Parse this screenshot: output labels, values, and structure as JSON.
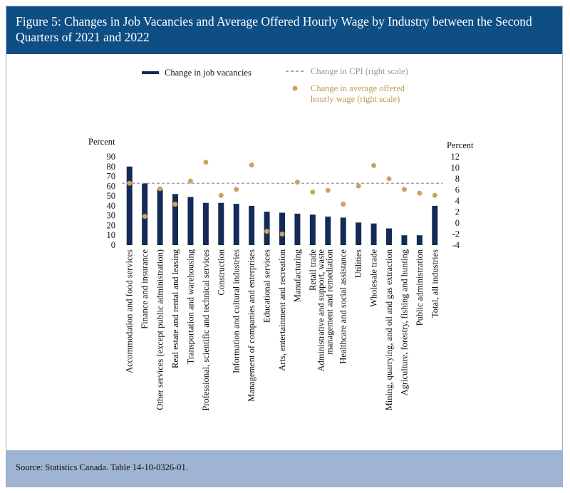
{
  "header": {
    "title": "Figure 5: Changes in Job Vacancies and Average Offered Hourly Wage by Industry between the Second Quarters of 2021 and 2022"
  },
  "footer": {
    "source": "Source: Statistics Canada. Table 14-10-0326-01."
  },
  "colors": {
    "header_bg": "#0f4e85",
    "footer_bg": "#9fb4d2",
    "bar": "#142b57",
    "wage_dot": "#c9a55c",
    "cpi_line": "#a6a6a6",
    "wage_legend_text": "#b89a52"
  },
  "chart_data": {
    "type": "bar",
    "left_axis_title": "Percent",
    "right_axis_title": "Percent",
    "ylim_left": [
      0,
      90
    ],
    "yticks_left": [
      "0",
      "10",
      "20",
      "30",
      "40",
      "50",
      "60",
      "70",
      "80",
      "90"
    ],
    "ylim_right": [
      -4,
      12
    ],
    "yticks_right": [
      "-4",
      "-2",
      "0",
      "2",
      "4",
      "6",
      "8",
      "10",
      "12"
    ],
    "legend": {
      "vacancies": "Change in job vacancies",
      "cpi": "Change in CPI (right scale)",
      "wage_line1": "Change in average offered",
      "wage_line2": "hourly wage (right scale)"
    },
    "cpi_value": 7.2,
    "categories": [
      "Accommodation and food services",
      "Finance and insurance",
      "Other services (except public administration)",
      "Real estate and rental and leasing",
      "Transportation and warehousing",
      "Professional, scientific and technical services",
      "Construction",
      "Information and cultural industries",
      "Management of companies and enterprises",
      "Educational services",
      "Arts, entertainment and recreation",
      "Manufacturing",
      "Retail trade",
      [
        "Administrative and support, waste",
        "management and remediation"
      ],
      "Healthcare and social assistance",
      "Utilities",
      "Wholesale trade",
      "Mining, quarrying, and oil and gas extraction",
      "Agriculture, forestry, fishing and hunting",
      "Public administration",
      "Total, all industries"
    ],
    "series": [
      {
        "name": "Change in job vacancies",
        "axis": "left",
        "values": [
          80,
          63,
          57,
          52,
          49,
          43,
          43,
          42,
          40,
          34,
          33,
          32,
          31,
          29,
          28,
          23,
          22,
          17,
          10,
          10,
          40
        ]
      },
      {
        "name": "Change in average offered hourly wage (right scale)",
        "axis": "right",
        "values": [
          7.2,
          1.2,
          6.2,
          3.4,
          7.6,
          11.0,
          5.0,
          6.1,
          10.5,
          -1.5,
          -2.0,
          7.4,
          5.6,
          5.9,
          3.4,
          6.7,
          10.4,
          8.0,
          6.1,
          5.4,
          5.0
        ]
      }
    ]
  }
}
